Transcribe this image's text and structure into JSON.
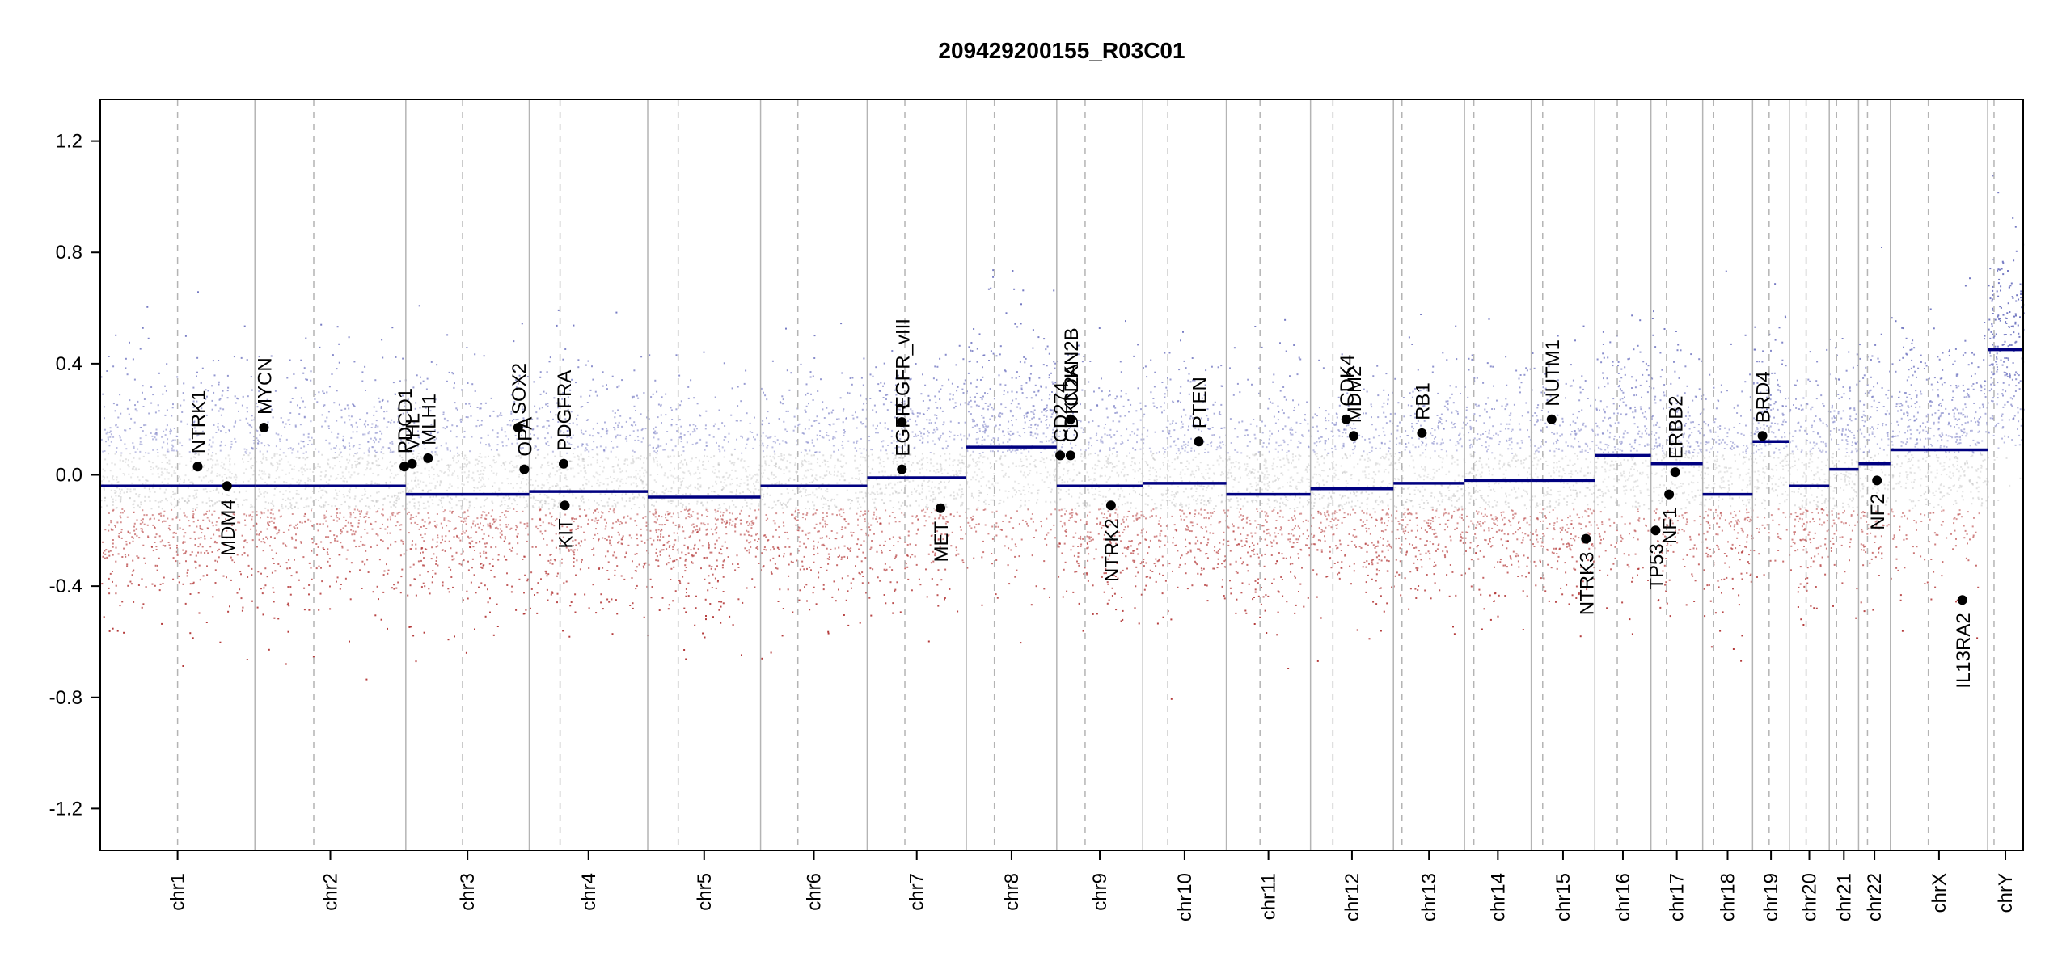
{
  "chart_data": {
    "type": "scatter",
    "title": "209429200155_R03C01",
    "xlabel": "",
    "ylabel": "",
    "ylim": [
      -1.35,
      1.35
    ],
    "y_ticks": [
      -1.2,
      -0.8,
      -0.4,
      0.0,
      0.4,
      0.8,
      1.2
    ],
    "y_tick_labels": [
      "-1.2",
      "-0.8",
      "-0.4",
      "0.0",
      "0.4",
      "0.8",
      "1.2"
    ],
    "grid": false,
    "legend": "none",
    "colors": {
      "gain_points": "#6f74c0",
      "loss_points": "#b03030",
      "neutral_points": "#b8b8b8",
      "segments": "#000080",
      "gene_markers": "#000000",
      "boundaries": "#b4b4b4"
    },
    "chromosomes": [
      {
        "name": "chr1",
        "size": 248,
        "centromere": 0.5,
        "segment": -0.04
      },
      {
        "name": "chr2",
        "size": 242,
        "centromere": 0.39,
        "segment": -0.04
      },
      {
        "name": "chr3",
        "size": 198,
        "centromere": 0.46,
        "segment": -0.07
      },
      {
        "name": "chr4",
        "size": 190,
        "centromere": 0.26,
        "segment": -0.06
      },
      {
        "name": "chr5",
        "size": 181,
        "centromere": 0.27,
        "segment": -0.08
      },
      {
        "name": "chr6",
        "size": 171,
        "centromere": 0.35,
        "segment": -0.04
      },
      {
        "name": "chr7",
        "size": 159,
        "centromere": 0.38,
        "segment": -0.01
      },
      {
        "name": "chr8",
        "size": 145,
        "centromere": 0.31,
        "segment": 0.1
      },
      {
        "name": "chr9",
        "size": 138,
        "centromere": 0.33,
        "segment": -0.04
      },
      {
        "name": "chr10",
        "size": 134,
        "centromere": 0.3,
        "segment": -0.03
      },
      {
        "name": "chr11",
        "size": 135,
        "centromere": 0.4,
        "segment": -0.07
      },
      {
        "name": "chr12",
        "size": 133,
        "centromere": 0.27,
        "segment": -0.05
      },
      {
        "name": "chr13",
        "size": 114,
        "centromere": 0.12,
        "segment": -0.03
      },
      {
        "name": "chr14",
        "size": 107,
        "centromere": 0.14,
        "segment": -0.02
      },
      {
        "name": "chr15",
        "size": 102,
        "centromere": 0.18,
        "segment": -0.02
      },
      {
        "name": "chr16",
        "size": 90,
        "centromere": 0.4,
        "segment": 0.07
      },
      {
        "name": "chr17",
        "size": 83,
        "centromere": 0.3,
        "segment": 0.04
      },
      {
        "name": "chr18",
        "size": 80,
        "centromere": 0.22,
        "segment": -0.07
      },
      {
        "name": "chr19",
        "size": 59,
        "centromere": 0.45,
        "segment": 0.12
      },
      {
        "name": "chr20",
        "size": 64,
        "centromere": 0.42,
        "segment": -0.04
      },
      {
        "name": "chr21",
        "size": 47,
        "centromere": 0.25,
        "segment": 0.02
      },
      {
        "name": "chr22",
        "size": 51,
        "centromere": 0.28,
        "segment": 0.04
      },
      {
        "name": "chrX",
        "size": 156,
        "centromere": 0.39,
        "segment": 0.09
      },
      {
        "name": "chrY",
        "size": 57,
        "centromere": 0.18,
        "segment": 0.45
      }
    ],
    "genes": [
      {
        "name": "NTRK1",
        "chrom": "chr1",
        "pos": 0.63,
        "value": 0.03,
        "label": "above"
      },
      {
        "name": "MDM4",
        "chrom": "chr1",
        "pos": 0.82,
        "value": -0.04,
        "label": "below"
      },
      {
        "name": "MYCN",
        "chrom": "chr2",
        "pos": 0.06,
        "value": 0.17,
        "label": "above"
      },
      {
        "name": "PDCD1",
        "chrom": "chr2",
        "pos": 0.99,
        "value": 0.03,
        "label": "above"
      },
      {
        "name": "VHL",
        "chrom": "chr3",
        "pos": 0.05,
        "value": 0.04,
        "label": "above"
      },
      {
        "name": "MLH1",
        "chrom": "chr3",
        "pos": 0.18,
        "value": 0.06,
        "label": "above"
      },
      {
        "name": "SOX2",
        "chrom": "chr3",
        "pos": 0.91,
        "value": 0.17,
        "label": "above"
      },
      {
        "name": "OPA",
        "chrom": "chr3",
        "pos": 0.96,
        "value": 0.02,
        "label": "above"
      },
      {
        "name": "PDGFRA",
        "chrom": "chr4",
        "pos": 0.29,
        "value": 0.04,
        "label": "above"
      },
      {
        "name": "KIT",
        "chrom": "chr4",
        "pos": 0.3,
        "value": -0.11,
        "label": "below"
      },
      {
        "name": "EGFR_vIII",
        "chrom": "chr7",
        "pos": 0.35,
        "value": 0.19,
        "label": "above"
      },
      {
        "name": "EGFR",
        "chrom": "chr7",
        "pos": 0.35,
        "value": 0.02,
        "label": "above"
      },
      {
        "name": "MET",
        "chrom": "chr7",
        "pos": 0.74,
        "value": -0.12,
        "label": "below"
      },
      {
        "name": "CD274",
        "chrom": "chr9",
        "pos": 0.04,
        "value": 0.07,
        "label": "above"
      },
      {
        "name": "CDKN2A",
        "chrom": "chr9",
        "pos": 0.16,
        "value": 0.07,
        "label": "above"
      },
      {
        "name": "CDKN2B",
        "chrom": "chr9",
        "pos": 0.16,
        "value": 0.2,
        "label": "above"
      },
      {
        "name": "NTRK2",
        "chrom": "chr9",
        "pos": 0.63,
        "value": -0.11,
        "label": "below"
      },
      {
        "name": "PTEN",
        "chrom": "chr10",
        "pos": 0.67,
        "value": 0.12,
        "label": "above"
      },
      {
        "name": "CDK4",
        "chrom": "chr12",
        "pos": 0.43,
        "value": 0.2,
        "label": "above"
      },
      {
        "name": "MDM2",
        "chrom": "chr12",
        "pos": 0.52,
        "value": 0.14,
        "label": "above"
      },
      {
        "name": "RB1",
        "chrom": "chr13",
        "pos": 0.4,
        "value": 0.15,
        "label": "above"
      },
      {
        "name": "NUTM1",
        "chrom": "chr15",
        "pos": 0.32,
        "value": 0.2,
        "label": "above"
      },
      {
        "name": "NTRK3",
        "chrom": "chr15",
        "pos": 0.86,
        "value": -0.23,
        "label": "below"
      },
      {
        "name": "TP53",
        "chrom": "chr17",
        "pos": 0.09,
        "value": -0.2,
        "label": "below"
      },
      {
        "name": "NF1",
        "chrom": "chr17",
        "pos": 0.35,
        "value": -0.07,
        "label": "below"
      },
      {
        "name": "ERBB2",
        "chrom": "chr17",
        "pos": 0.47,
        "value": 0.01,
        "label": "above"
      },
      {
        "name": "BRD4",
        "chrom": "chr19",
        "pos": 0.27,
        "value": 0.14,
        "label": "above"
      },
      {
        "name": "NF2",
        "chrom": "chr22",
        "pos": 0.58,
        "value": -0.02,
        "label": "below"
      },
      {
        "name": "IL13RA2",
        "chrom": "chrX",
        "pos": 0.74,
        "value": -0.45,
        "label": "below"
      }
    ]
  }
}
